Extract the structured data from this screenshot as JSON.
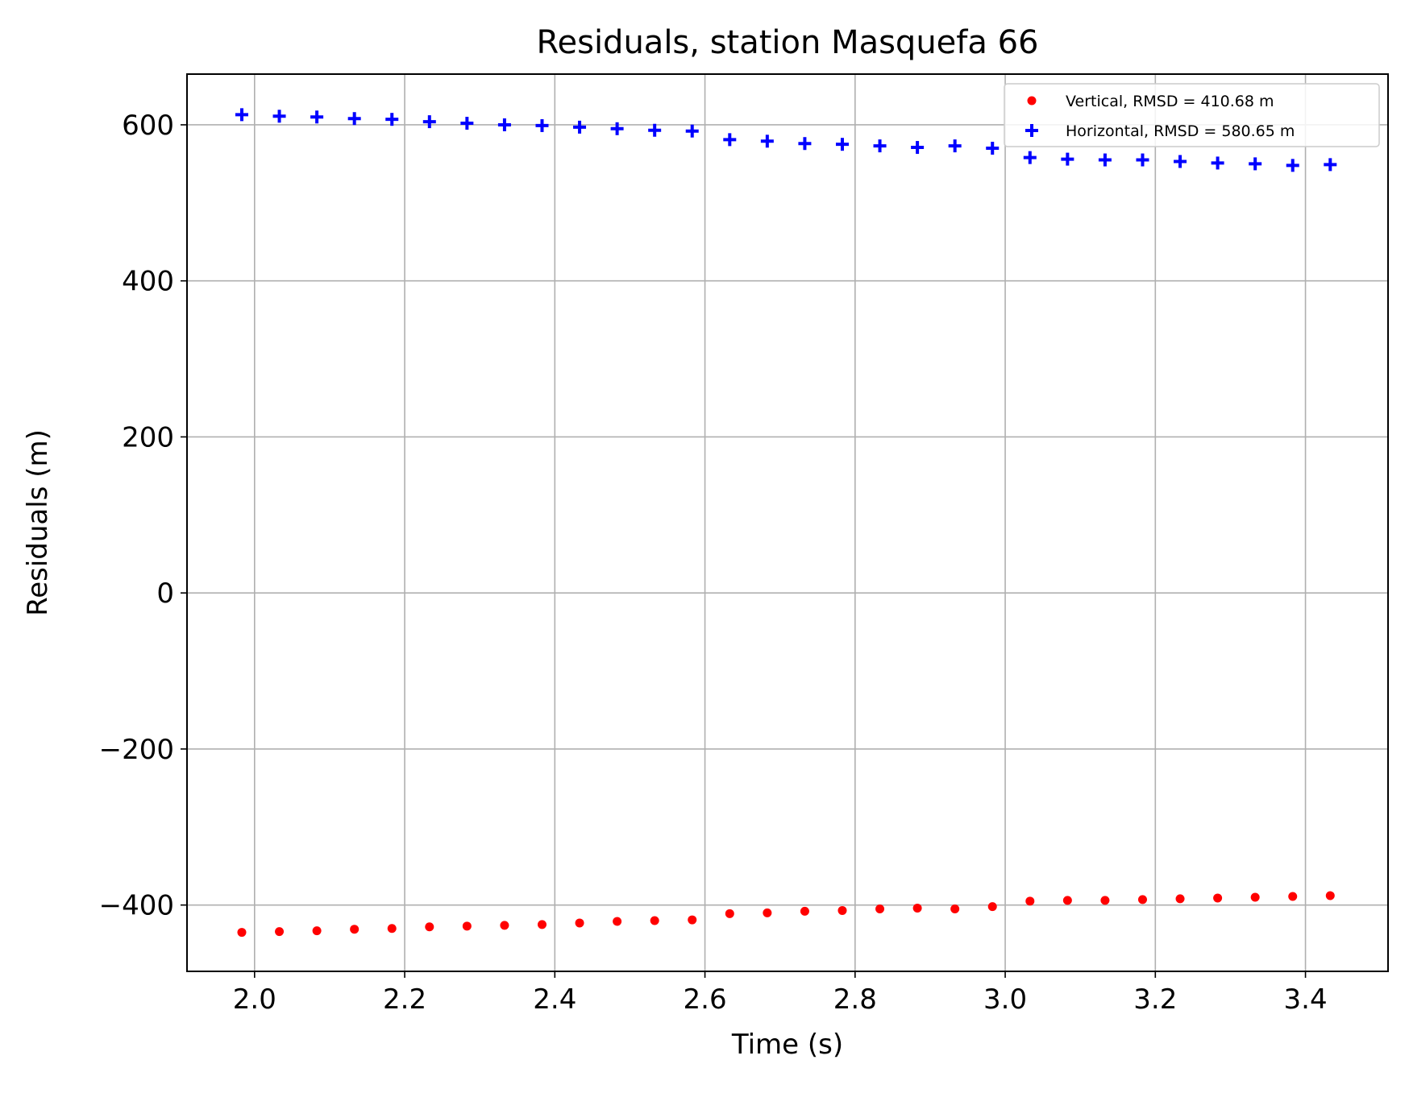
{
  "chart_data": {
    "type": "scatter",
    "title": "Residuals, station Masquefa 66",
    "xlabel": "Time (s)",
    "ylabel": "Residuals (m)",
    "xlim": [
      1.91,
      3.51
    ],
    "ylim": [
      -485,
      665
    ],
    "xticks": [
      2.0,
      2.2,
      2.4,
      2.6,
      2.8,
      3.0,
      3.2,
      3.4
    ],
    "xtick_labels": [
      "2.0",
      "2.2",
      "2.4",
      "2.6",
      "2.8",
      "3.0",
      "3.2",
      "3.4"
    ],
    "yticks": [
      -400,
      -200,
      0,
      200,
      400,
      600
    ],
    "ytick_labels": [
      "−400",
      "−200",
      "0",
      "200",
      "400",
      "600"
    ],
    "grid": true,
    "legend_position": "top-right",
    "x": [
      1.983,
      2.033,
      2.083,
      2.133,
      2.183,
      2.233,
      2.283,
      2.333,
      2.383,
      2.433,
      2.483,
      2.533,
      2.583,
      2.633,
      2.683,
      2.733,
      2.783,
      2.833,
      2.883,
      2.933,
      2.983,
      3.033,
      3.083,
      3.133,
      3.183,
      3.233,
      3.283,
      3.333,
      3.383,
      3.433
    ],
    "series": [
      {
        "name": "Vertical, RMSD = 410.68 m",
        "marker": "dot",
        "color": "#ff0000",
        "values": [
          -435,
          -434,
          -433,
          -431,
          -430,
          -428,
          -427,
          -426,
          -425,
          -423,
          -421,
          -420,
          -419,
          -411,
          -410,
          -408,
          -407,
          -405,
          -404,
          -405,
          -402,
          -395,
          -394,
          -394,
          -393,
          -392,
          -391,
          -390,
          -389,
          -388
        ]
      },
      {
        "name": "Horizontal, RMSD = 580.65 m",
        "marker": "plus",
        "color": "#0000ff",
        "values": [
          613,
          611,
          610,
          608,
          607,
          604,
          602,
          600,
          599,
          597,
          595,
          593,
          592,
          581,
          579,
          576,
          575,
          573,
          571,
          573,
          570,
          558,
          556,
          555,
          555,
          553,
          551,
          550,
          548,
          549
        ]
      }
    ]
  }
}
